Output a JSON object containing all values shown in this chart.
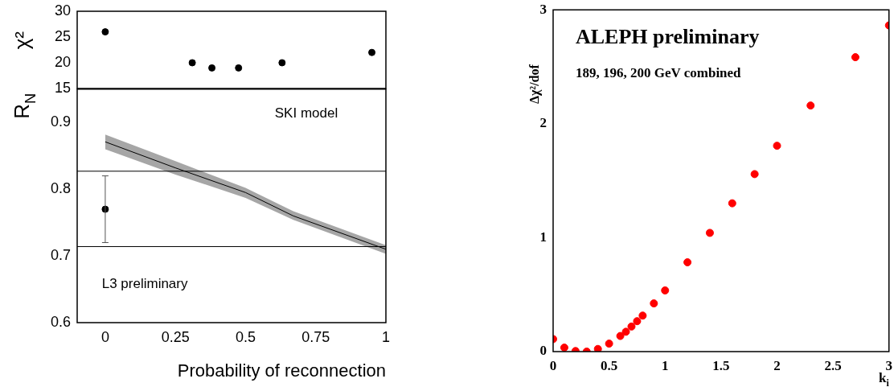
{
  "chart_data": [
    {
      "type": "scatter",
      "ylabel": "χ²",
      "x": [
        0,
        0.31,
        0.38,
        0.475,
        0.63,
        0.95
      ],
      "values": [
        26,
        20,
        19,
        19,
        20,
        22
      ],
      "color": "#000000",
      "marker": "circle",
      "xlim": [
        -0.1,
        1
      ],
      "xticks": [
        0,
        0.25,
        0.5,
        0.75,
        1
      ],
      "ylim": [
        15,
        30
      ],
      "yticks": [
        15,
        20,
        25,
        30
      ],
      "tick_labels": "y"
    },
    {
      "type": "scatter",
      "ylabel": "R$_{N}$",
      "xlabel": "Probability of reconnection",
      "xlim": [
        -0.1,
        1
      ],
      "xticks": [
        0,
        0.25,
        0.5,
        0.75,
        1
      ],
      "ylim": [
        0.6,
        0.95
      ],
      "yticks": [
        0.6,
        0.7,
        0.8,
        0.9
      ],
      "series": [
        {
          "type": "scatter",
          "marker": "circle",
          "color": "#000000",
          "x": [
            0
          ],
          "values": [
            0.77
          ],
          "errors": [
            [
              0.72,
              0.82
            ]
          ]
        },
        {
          "type": "line",
          "marker": "none",
          "color": "#000000",
          "x": [
            0,
            0.25,
            0.5,
            0.67,
            1
          ],
          "values": [
            0.871,
            0.832,
            0.795,
            0.76,
            0.71
          ],
          "lower": [
            0.86,
            0.822,
            0.787,
            0.754,
            0.703
          ],
          "upper": [
            0.882,
            0.842,
            0.802,
            0.767,
            0.716
          ]
        }
      ],
      "ref_lines": [
        {
          "axis": "y",
          "value": 0.827
        },
        {
          "axis": "y",
          "value": 0.714
        }
      ],
      "annotations": [
        "SKI model",
        "L3 preliminary"
      ]
    },
    {
      "type": "scatter",
      "title": "ALEPH preliminary",
      "subtitle": "189, 196, 200 GeV combined",
      "xlabel": "k$_{i}$",
      "ylabel": "Δχ²/dof",
      "color": "#ff0000",
      "marker": "circle",
      "x": [
        0,
        0.1,
        0.2,
        0.3,
        0.4,
        0.5,
        0.6,
        0.65,
        0.7,
        0.75,
        0.8,
        0.9,
        1.0,
        1.2,
        1.4,
        1.6,
        1.8,
        2.0,
        2.3,
        2.7,
        3.0
      ],
      "values": [
        0.11,
        0.035,
        0.005,
        0.0,
        0.023,
        0.07,
        0.137,
        0.174,
        0.22,
        0.267,
        0.316,
        0.423,
        0.537,
        0.784,
        1.042,
        1.302,
        1.558,
        1.807,
        2.16,
        2.584,
        2.863
      ],
      "xlim": [
        0,
        3
      ],
      "xticks": [
        0,
        0.5,
        1,
        1.5,
        2,
        2.5,
        3
      ],
      "ylim": [
        0,
        3
      ],
      "yticks": [
        0,
        1,
        2,
        3
      ]
    }
  ]
}
